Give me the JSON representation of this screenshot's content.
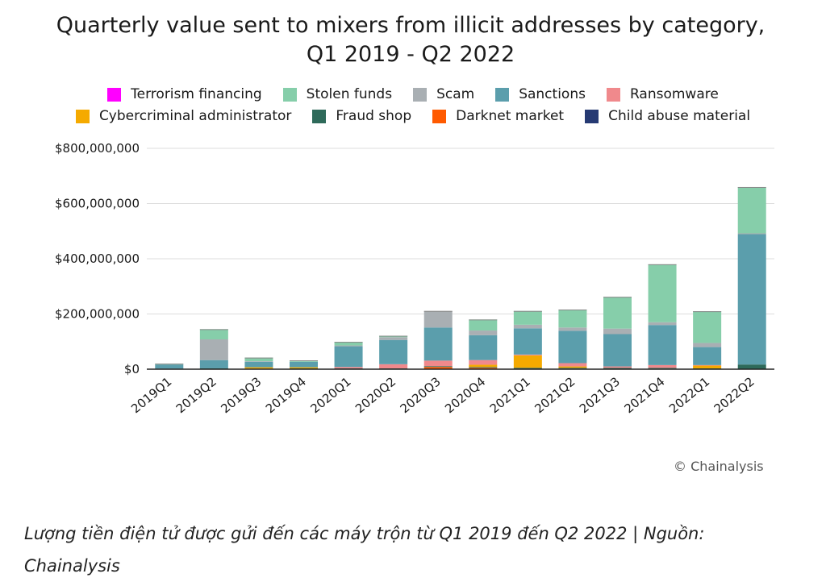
{
  "chart_data": {
    "type": "bar",
    "stacked": true,
    "title_line1": "Quarterly value sent to mixers from illicit addresses by category,",
    "title_line2": "Q1 2019 - Q2 2022",
    "xlabel": "",
    "ylabel": "",
    "ylim": [
      0,
      800000000
    ],
    "yticks": [
      0,
      200000000,
      400000000,
      600000000,
      800000000
    ],
    "ytick_labels": [
      "$0",
      "$200,000,000",
      "$400,000,000",
      "$600,000,000",
      "$800,000,000"
    ],
    "grid": true,
    "categories": [
      "2019Q1",
      "2019Q2",
      "2019Q3",
      "2019Q4",
      "2020Q1",
      "2020Q2",
      "2020Q3",
      "2020Q4",
      "2021Q1",
      "2021Q2",
      "2021Q3",
      "2021Q4",
      "2022Q1",
      "2022Q2"
    ],
    "series": [
      {
        "name": "Terrorism financing",
        "color": "#ff00ff",
        "values": [
          0,
          0,
          0,
          0,
          0,
          0,
          0,
          0,
          0,
          0,
          0,
          0,
          0,
          0
        ]
      },
      {
        "name": "Stolen funds",
        "color": "#86ceaa",
        "values": [
          3000000,
          37000000,
          13000000,
          5000000,
          13000000,
          5000000,
          0,
          40000000,
          50000000,
          65000000,
          115000000,
          210000000,
          115000000,
          168000000
        ]
      },
      {
        "name": "Scam",
        "color": "#a9afb3",
        "values": [
          0,
          75000000,
          2000000,
          0,
          3000000,
          10000000,
          60000000,
          17000000,
          13000000,
          12000000,
          20000000,
          10000000,
          15000000,
          3000000
        ]
      },
      {
        "name": "Sanctions",
        "color": "#5b9eac",
        "values": [
          15000000,
          30000000,
          20000000,
          20000000,
          75000000,
          88000000,
          120000000,
          90000000,
          95000000,
          117000000,
          117000000,
          145000000,
          65000000,
          472000000
        ]
      },
      {
        "name": "Ransomware",
        "color": "#f0898c",
        "values": [
          0,
          0,
          0,
          0,
          5000000,
          15000000,
          20000000,
          17000000,
          3000000,
          12000000,
          5000000,
          10000000,
          2000000,
          0
        ]
      },
      {
        "name": "Cybercriminal administrator",
        "color": "#f5aa00",
        "values": [
          0,
          0,
          5000000,
          4000000,
          0,
          0,
          0,
          8000000,
          45000000,
          5000000,
          0,
          0,
          10000000,
          0
        ]
      },
      {
        "name": "Fraud shop",
        "color": "#2e6a5a",
        "values": [
          2000000,
          3000000,
          2000000,
          3000000,
          3000000,
          3000000,
          3000000,
          3000000,
          5000000,
          3000000,
          5000000,
          3000000,
          3000000,
          17000000
        ]
      },
      {
        "name": "Darknet market",
        "color": "#ff5a00",
        "values": [
          0,
          0,
          0,
          0,
          0,
          0,
          8000000,
          5000000,
          0,
          2000000,
          0,
          2000000,
          0,
          0
        ]
      },
      {
        "name": "Child abuse material",
        "color": "#263a73",
        "values": [
          0,
          0,
          0,
          0,
          0,
          0,
          0,
          0,
          0,
          0,
          0,
          0,
          0,
          0
        ]
      }
    ],
    "stack_order_bottom_to_top": [
      "Child abuse material",
      "Darknet market",
      "Fraud shop",
      "Cybercriminal administrator",
      "Ransomware",
      "Sanctions",
      "Scam",
      "Stolen funds",
      "Terrorism financing"
    ],
    "legend_position": "top",
    "legend_rows": [
      [
        "Terrorism financing",
        "Stolen funds",
        "Scam",
        "Sanctions",
        "Ransomware"
      ],
      [
        "Cybercriminal administrator",
        "Fraud shop",
        "Darknet market",
        "Child abuse material"
      ]
    ],
    "axis_color": "#222222",
    "grid_color": "#dddddd"
  },
  "source_credit": "© Chainalysis",
  "caption": "Lượng tiền điện tử được gửi đến các máy trộn từ Q1 2019 đến Q2 2022 | Nguồn: Chainalysis"
}
